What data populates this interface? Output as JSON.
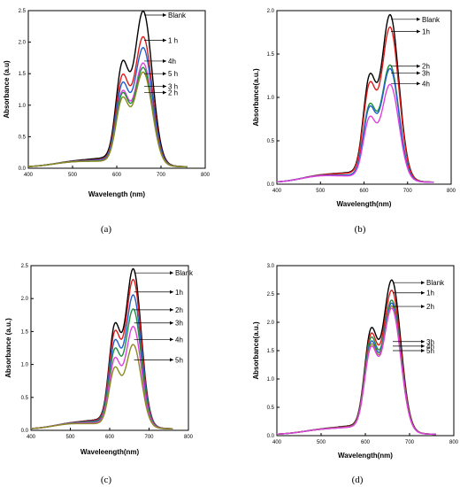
{
  "panel_labels": [
    "(a)",
    "(b)",
    "(c)",
    "(d)"
  ],
  "colors": {
    "blank": "#000000",
    "h1": "#e01a1a",
    "h2": "#8a8a20",
    "h3": "#1f8f3a",
    "h4": "#1f5fd0",
    "h5": "#e040e0",
    "h4_b": "#e040e0",
    "h3_b": "#2a7aa0"
  },
  "chart_data": [
    {
      "type": "line",
      "xlabel": "Wavelength (nm)",
      "ylabel": "Absorbance (a.u)",
      "xlim": [
        400,
        800
      ],
      "ylim": [
        0,
        2.5
      ],
      "xticks": [
        400,
        500,
        600,
        700,
        800
      ],
      "yticks": [
        0.0,
        0.5,
        1.0,
        1.5,
        2.0,
        2.5
      ],
      "ytick_labels": [
        "0.0",
        "0.5",
        "1.0",
        "1.5",
        "2.0",
        "2.5"
      ],
      "series": [
        {
          "name": "Blank",
          "peak": 2.43,
          "shoulder": 1.6,
          "color": "#000000"
        },
        {
          "name": "1 h",
          "peak": 2.03,
          "shoulder": 1.4,
          "color": "#e01a1a"
        },
        {
          "name": "4h",
          "peak": 1.86,
          "shoulder": 1.28,
          "color": "#1f5fd0"
        },
        {
          "name": "5 h",
          "peak": 1.62,
          "shoulder": 1.16,
          "color": "#e040e0"
        },
        {
          "name": "3 h",
          "peak": 1.55,
          "shoulder": 1.13,
          "color": "#1f8f3a"
        },
        {
          "name": "2 h",
          "peak": 1.48,
          "shoulder": 1.06,
          "color": "#8a8a20"
        }
      ],
      "legend_y": [
        2.43,
        2.03,
        1.7,
        1.5,
        1.3,
        1.2
      ]
    },
    {
      "type": "line",
      "xlabel": "Wavelength(nm)",
      "ylabel": "Absorbance(a.u.)",
      "xlim": [
        400,
        800
      ],
      "ylim": [
        0,
        2.0
      ],
      "xticks": [
        400,
        500,
        600,
        700,
        800
      ],
      "yticks": [
        0.0,
        0.5,
        1.0,
        1.5,
        2.0
      ],
      "ytick_labels": [
        "0.0",
        "0.5",
        "1.0",
        "1.5",
        "2.0"
      ],
      "series": [
        {
          "name": "Blank",
          "peak": 1.9,
          "shoulder": 1.18,
          "color": "#000000"
        },
        {
          "name": "1h",
          "peak": 1.76,
          "shoulder": 1.09,
          "color": "#e01a1a"
        },
        {
          "name": "2h",
          "peak": 1.33,
          "shoulder": 0.86,
          "color": "#1f8f3a"
        },
        {
          "name": "3h",
          "peak": 1.29,
          "shoulder": 0.83,
          "color": "#1f5fd0"
        },
        {
          "name": "4h",
          "peak": 1.11,
          "shoulder": 0.72,
          "color": "#e040e0"
        }
      ],
      "legend_y": [
        1.9,
        1.76,
        1.36,
        1.28,
        1.16
      ]
    },
    {
      "type": "line",
      "xlabel": "Waveleength(nm)",
      "ylabel": "Absorbance (a.u.)",
      "xlim": [
        400,
        800
      ],
      "ylim": [
        0,
        2.5
      ],
      "xticks": [
        400,
        500,
        600,
        700,
        800
      ],
      "yticks": [
        0.0,
        0.5,
        1.0,
        1.5,
        2.0,
        2.5
      ],
      "ytick_labels": [
        "0.0",
        "0.5",
        "1.0",
        "1.5",
        "2.0",
        "2.5"
      ],
      "series": [
        {
          "name": "Blank",
          "peak": 2.39,
          "shoulder": 1.52,
          "color": "#000000"
        },
        {
          "name": "1h",
          "peak": 2.23,
          "shoulder": 1.41,
          "color": "#e01a1a"
        },
        {
          "name": "2h",
          "peak": 2.0,
          "shoulder": 1.28,
          "color": "#1f5fd0"
        },
        {
          "name": "3h",
          "peak": 1.79,
          "shoulder": 1.16,
          "color": "#1f8f3a"
        },
        {
          "name": "4h",
          "peak": 1.53,
          "shoulder": 1.03,
          "color": "#e040e0"
        },
        {
          "name": "5h",
          "peak": 1.26,
          "shoulder": 0.9,
          "color": "#8a8a20"
        }
      ],
      "legend_y": [
        2.39,
        2.1,
        1.83,
        1.63,
        1.38,
        1.07
      ]
    },
    {
      "type": "line",
      "xlabel": "Wavelength(nm)",
      "ylabel": "Absorbance(a.u.)",
      "xlim": [
        400,
        800
      ],
      "ylim": [
        0,
        3.0
      ],
      "xticks": [
        400,
        500,
        600,
        700,
        800
      ],
      "yticks": [
        0.0,
        0.5,
        1.0,
        1.5,
        2.0,
        2.5,
        3.0
      ],
      "ytick_labels": [
        "0.0",
        "0.5",
        "1.0",
        "1.5",
        "2.0",
        "2.5",
        "3.0"
      ],
      "series": [
        {
          "name": "Blank",
          "peak": 2.68,
          "shoulder": 1.79,
          "color": "#000000"
        },
        {
          "name": "1h",
          "peak": 2.5,
          "shoulder": 1.7,
          "color": "#e01a1a"
        },
        {
          "name": "2h",
          "peak": 2.33,
          "shoulder": 1.64,
          "color": "#1f8f3a"
        },
        {
          "name": "3h",
          "peak": 2.28,
          "shoulder": 1.57,
          "color": "#1f5fd0"
        },
        {
          "name": "4h",
          "peak": 2.23,
          "shoulder": 1.52,
          "color": "#8a8a20"
        },
        {
          "name": "5h",
          "peak": 2.19,
          "shoulder": 1.48,
          "color": "#e040e0"
        }
      ],
      "legend_y": [
        2.7,
        2.52,
        2.28,
        1.66,
        1.58,
        1.5
      ]
    }
  ]
}
